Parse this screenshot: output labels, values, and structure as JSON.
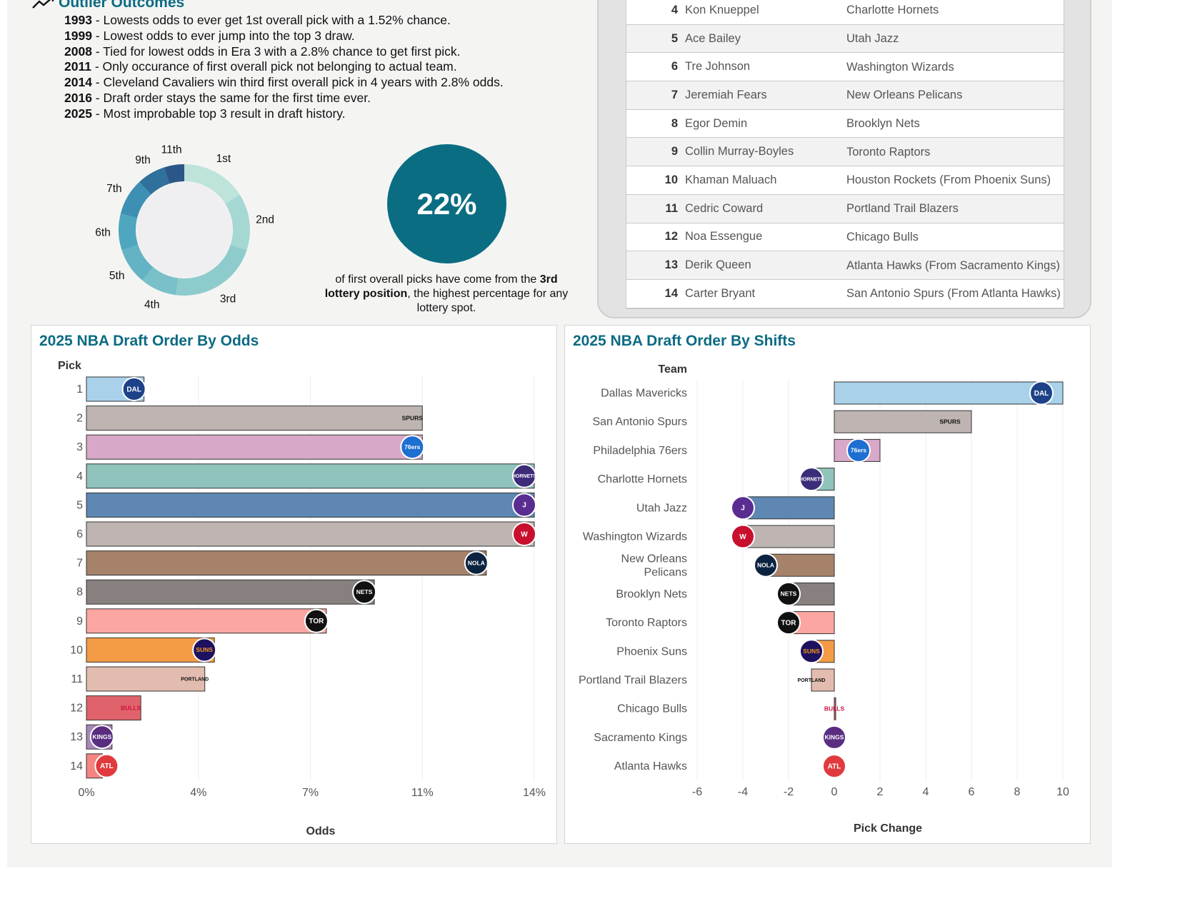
{
  "outliers": {
    "title": "Outlier Outcomes",
    "items": [
      {
        "year": "1993",
        "text": " - Lowests odds to ever get 1st overall pick with a 1.52% chance."
      },
      {
        "year": "1999",
        "text": " - Lowest odds to ever jump into the top 3 draw."
      },
      {
        "year": "2008",
        "text": " - Tied for lowest odds in Era 3 with a 2.8% chance to get first pick."
      },
      {
        "year": "2011",
        "text": " - Only occurance of first overall pick not belonging to actual team."
      },
      {
        "year": "2014",
        "text": " - Cleveland Cavaliers win third first overall pick in 4 years with 2.8% odds."
      },
      {
        "year": "2016",
        "text": " - Draft order stays the same for the first time ever."
      },
      {
        "year": "2025",
        "text": " - Most improbable top 3 result in draft history."
      }
    ]
  },
  "donut": {
    "labels": [
      "1st",
      "2nd",
      "3rd",
      "4th",
      "5th",
      "6th",
      "7th",
      "9th",
      "11th"
    ],
    "shares": [
      16,
      14,
      22,
      9,
      9,
      9,
      9,
      7,
      5
    ],
    "colors": [
      "#bde3da",
      "#a5d8d3",
      "#8ecbcd",
      "#79c0c9",
      "#63b3c4",
      "#4ea6bf",
      "#3d8fb4",
      "#2f709c",
      "#2b5788"
    ]
  },
  "kpi": {
    "value": "22%",
    "caption_pre": "of first overall picks have come from the ",
    "caption_bold": "3rd lottery position",
    "caption_post": ", the highest percentage for any lottery spot."
  },
  "draft_table": [
    {
      "pick": "4",
      "player": "Kon Knueppel",
      "team": "Charlotte Hornets"
    },
    {
      "pick": "5",
      "player": "Ace Bailey",
      "team": "Utah Jazz"
    },
    {
      "pick": "6",
      "player": "Tre Johnson",
      "team": "Washington Wizards"
    },
    {
      "pick": "7",
      "player": "Jeremiah Fears",
      "team": "New Orleans Pelicans"
    },
    {
      "pick": "8",
      "player": "Egor Demin",
      "team": "Brooklyn Nets"
    },
    {
      "pick": "9",
      "player": "Collin Murray-Boyles",
      "team": "Toronto Raptors"
    },
    {
      "pick": "10",
      "player": "Khaman Maluach",
      "team": "Houston Rockets (From Phoenix Suns)"
    },
    {
      "pick": "11",
      "player": "Cedric Coward",
      "team": "Portland Trail Blazers"
    },
    {
      "pick": "12",
      "player": "Noa Essengue",
      "team": "Chicago Bulls"
    },
    {
      "pick": "13",
      "player": "Derik Queen",
      "team": "Atlanta Hawks (From Sacramento Kings)"
    },
    {
      "pick": "14",
      "player": "Carter Bryant",
      "team": "San Antonio Spurs (From Atlanta Hawks)"
    }
  ],
  "logos": {
    "Dallas Mavericks": {
      "abbr": "DAL",
      "bg": "#1d428a",
      "fg": "#ffffff"
    },
    "San Antonio Spurs": {
      "abbr": "SPURS",
      "bg": "none",
      "fg": "#111111"
    },
    "Philadelphia 76ers": {
      "abbr": "76ers",
      "bg": "#1d6fd1",
      "fg": "#ffffff"
    },
    "Charlotte Hornets": {
      "abbr": "HORNETS",
      "bg": "#3d2c7a",
      "fg": "#ffffff"
    },
    "Utah Jazz": {
      "abbr": "J",
      "bg": "#5a2d91",
      "fg": "#ffffff"
    },
    "Washington Wizards": {
      "abbr": "W",
      "bg": "#c8102e",
      "fg": "#ffffff"
    },
    "New Orleans Pelicans": {
      "abbr": "NOLA",
      "bg": "#0c2340",
      "fg": "#ffffff"
    },
    "Brooklyn Nets": {
      "abbr": "NETS",
      "bg": "#111111",
      "fg": "#ffffff"
    },
    "Toronto Raptors": {
      "abbr": "TOR",
      "bg": "#111111",
      "fg": "#ffffff"
    },
    "Phoenix Suns": {
      "abbr": "SUNS",
      "bg": "#1d1160",
      "fg": "#f59a1c"
    },
    "Portland Trail Blazers": {
      "abbr": "PORTLAND",
      "bg": "none",
      "fg": "#111111"
    },
    "Chicago Bulls": {
      "abbr": "BULLS",
      "bg": "none",
      "fg": "#ce1141"
    },
    "Sacramento Kings": {
      "abbr": "KINGS",
      "bg": "#5a2d81",
      "fg": "#ffffff"
    },
    "Atlanta Hawks": {
      "abbr": "ATL",
      "bg": "#e03a3e",
      "fg": "#ffffff"
    }
  },
  "chart_data": [
    {
      "type": "bar",
      "title": "2025 NBA Draft Order By Odds",
      "ylabel": "Pick",
      "xlabel": "Odds",
      "categories": [
        "1",
        "2",
        "3",
        "4",
        "5",
        "6",
        "7",
        "8",
        "9",
        "10",
        "11",
        "12",
        "13",
        "14"
      ],
      "teams": [
        "Dallas Mavericks",
        "San Antonio Spurs",
        "Philadelphia 76ers",
        "Charlotte Hornets",
        "Utah Jazz",
        "Washington Wizards",
        "New Orleans Pelicans",
        "Brooklyn Nets",
        "Toronto Raptors",
        "Phoenix Suns",
        "Portland Trail Blazers",
        "Chicago Bulls",
        "Sacramento Kings",
        "Atlanta Hawks"
      ],
      "values": [
        1.8,
        10.5,
        10.5,
        14.0,
        14.0,
        14.0,
        12.5,
        9.0,
        7.5,
        4.0,
        3.7,
        1.7,
        0.8,
        0.5
      ],
      "colors": [
        "#a9d1ea",
        "#beb5b3",
        "#d7a8c8",
        "#8fc3bb",
        "#5e87b3",
        "#beb5b3",
        "#a6826b",
        "#87807e",
        "#fca6a2",
        "#f39b45",
        "#e2bcae",
        "#e0636b",
        "#a787b5",
        "#f48582"
      ],
      "xticks": [
        "0%",
        "4%",
        "7%",
        "11%",
        "14%"
      ],
      "xlim": [
        0,
        14
      ]
    },
    {
      "type": "bar",
      "title": "2025 NBA Draft Order By Shifts",
      "ylabel": "Team",
      "xlabel": "Pick Change",
      "categories": [
        "Dallas Mavericks",
        "San Antonio Spurs",
        "Philadelphia 76ers",
        "Charlotte Hornets",
        "Utah Jazz",
        "Washington Wizards",
        "New Orleans Pelicans",
        "Brooklyn Nets",
        "Toronto Raptors",
        "Phoenix Suns",
        "Portland Trail Blazers",
        "Chicago Bulls",
        "Sacramento Kings",
        "Atlanta Hawks"
      ],
      "values": [
        10,
        6,
        2,
        -1,
        -4,
        -4,
        -3,
        -2,
        -2,
        -1,
        -1,
        0,
        0,
        0
      ],
      "colors": [
        "#a9d1ea",
        "#beb5b3",
        "#d7a8c8",
        "#8fc3bb",
        "#5e87b3",
        "#beb5b3",
        "#a6826b",
        "#87807e",
        "#fca6a2",
        "#f39b45",
        "#e2bcae",
        "#e0636b",
        "#a787b5",
        "#f48582"
      ],
      "xticks": [
        "-6",
        "-4",
        "-2",
        "0",
        "2",
        "4",
        "6",
        "8",
        "10"
      ],
      "xlim": [
        -6,
        10
      ]
    }
  ]
}
